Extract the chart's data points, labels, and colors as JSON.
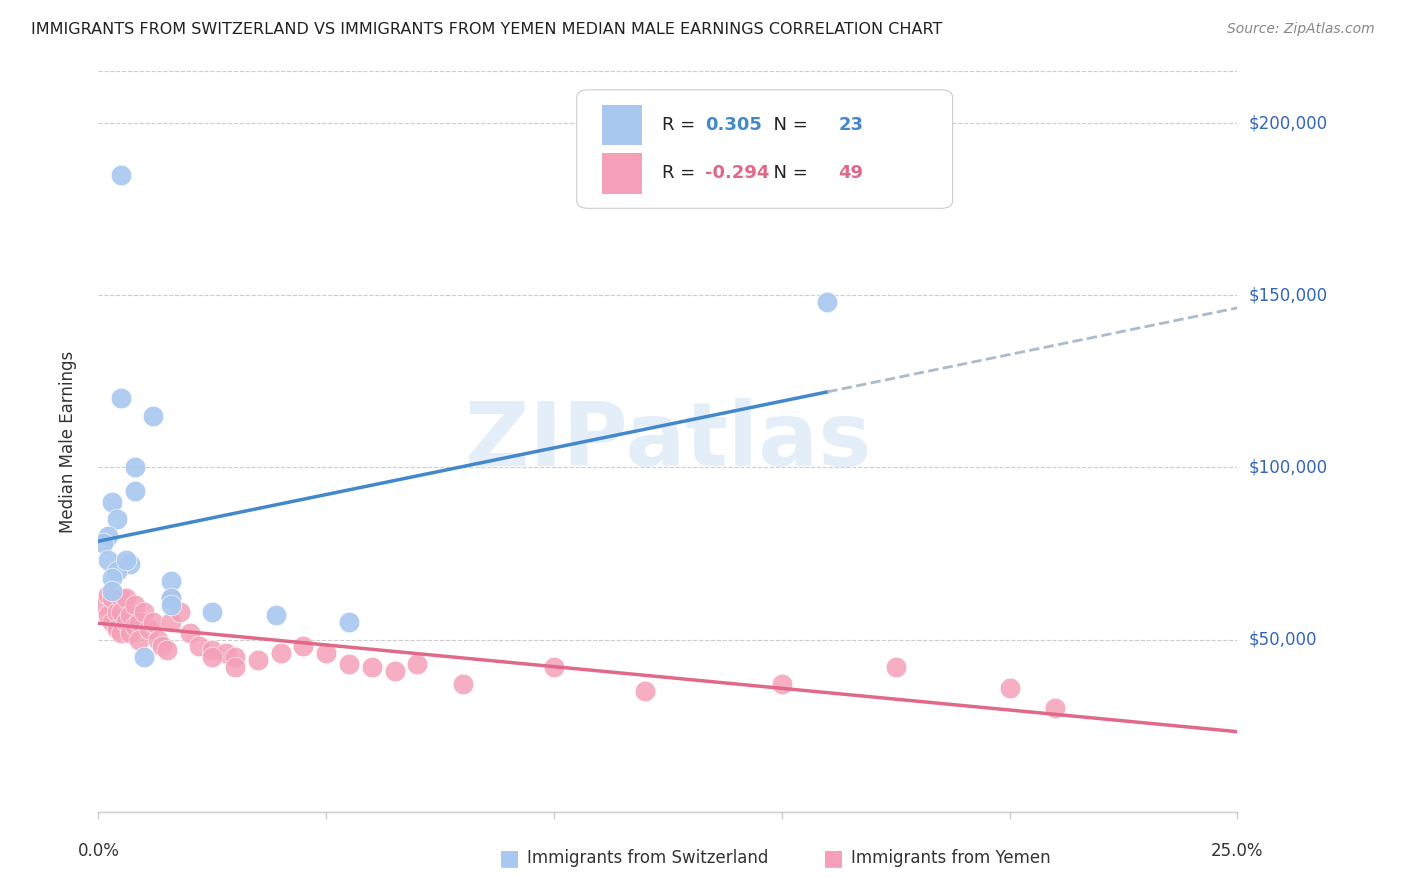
{
  "title": "IMMIGRANTS FROM SWITZERLAND VS IMMIGRANTS FROM YEMEN MEDIAN MALE EARNINGS CORRELATION CHART",
  "source": "Source: ZipAtlas.com",
  "ylabel": "Median Male Earnings",
  "xmin": 0.0,
  "xmax": 0.25,
  "ymin": 0,
  "ymax": 215000,
  "y_ticks": [
    0,
    50000,
    100000,
    150000,
    200000
  ],
  "y_tick_labels": [
    "",
    "$50,000",
    "$100,000",
    "$150,000",
    "$200,000"
  ],
  "switzerland_R": 0.305,
  "switzerland_N": 23,
  "yemen_R": -0.294,
  "yemen_N": 49,
  "switzerland_color": "#a8c8f0",
  "yemen_color": "#f5a0b8",
  "trend_blue": "#4488cc",
  "trend_pink": "#e06888",
  "trend_gray": "#aabbcc",
  "watermark": "ZIPatlas",
  "legend_label_ch": "Immigrants from Switzerland",
  "legend_label_ye": "Immigrants from Yemen",
  "switzerland_x": [
    0.005,
    0.005,
    0.012,
    0.008,
    0.008,
    0.003,
    0.004,
    0.002,
    0.001,
    0.002,
    0.007,
    0.004,
    0.003,
    0.016,
    0.003,
    0.016,
    0.016,
    0.025,
    0.039,
    0.055,
    0.16,
    0.01,
    0.006
  ],
  "switzerland_y": [
    185000,
    120000,
    115000,
    100000,
    93000,
    90000,
    85000,
    80000,
    78000,
    73000,
    72000,
    70000,
    68000,
    67000,
    64000,
    62000,
    60000,
    58000,
    57000,
    55000,
    148000,
    45000,
    73000
  ],
  "yemen_x": [
    0.001,
    0.002,
    0.002,
    0.003,
    0.003,
    0.004,
    0.004,
    0.005,
    0.005,
    0.005,
    0.006,
    0.006,
    0.007,
    0.007,
    0.008,
    0.008,
    0.009,
    0.009,
    0.01,
    0.011,
    0.012,
    0.013,
    0.014,
    0.015,
    0.016,
    0.016,
    0.018,
    0.02,
    0.022,
    0.025,
    0.028,
    0.03,
    0.035,
    0.04,
    0.045,
    0.05,
    0.055,
    0.06,
    0.065,
    0.07,
    0.08,
    0.1,
    0.12,
    0.15,
    0.175,
    0.2,
    0.21,
    0.025,
    0.03
  ],
  "yemen_y": [
    60000,
    63000,
    57000,
    62000,
    55000,
    58000,
    53000,
    62000,
    58000,
    52000,
    62000,
    55000,
    57000,
    52000,
    60000,
    54000,
    55000,
    50000,
    58000,
    53000,
    55000,
    50000,
    48000,
    47000,
    62000,
    55000,
    58000,
    52000,
    48000,
    47000,
    46000,
    45000,
    44000,
    46000,
    48000,
    46000,
    43000,
    42000,
    41000,
    43000,
    37000,
    42000,
    35000,
    37000,
    42000,
    36000,
    30000,
    45000,
    42000
  ]
}
